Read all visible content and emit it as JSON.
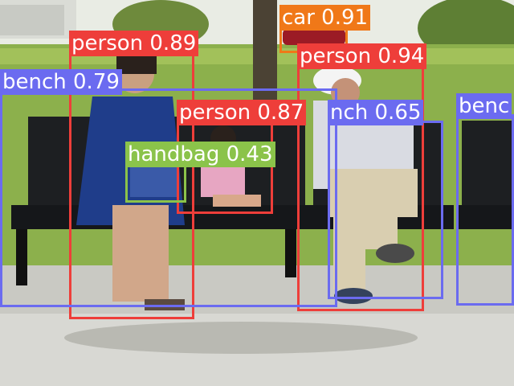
{
  "image": {
    "description": "Park scene: a woman, a small child and an older man sitting on black metal park benches on a sunny path, with grass, trees and a parked car in the background. Object-detection boxes are drawn over the photo.",
    "colors": {
      "person": "#ee3e3a",
      "bench": "#6b6bf0",
      "car": "#f07818",
      "handbag": "#8bc34a"
    }
  },
  "detections": [
    {
      "text": "car 0.91",
      "color": "car"
    },
    {
      "text": "person 0.89",
      "color": "person"
    },
    {
      "text": "person 0.94",
      "color": "person"
    },
    {
      "text": "bench 0.79",
      "color": "bench"
    },
    {
      "text": "person 0.87",
      "color": "person"
    },
    {
      "text": "nch 0.65",
      "color": "bench"
    },
    {
      "text": "benc",
      "color": "bench"
    },
    {
      "text": "handbag 0.43",
      "color": "handbag"
    }
  ]
}
